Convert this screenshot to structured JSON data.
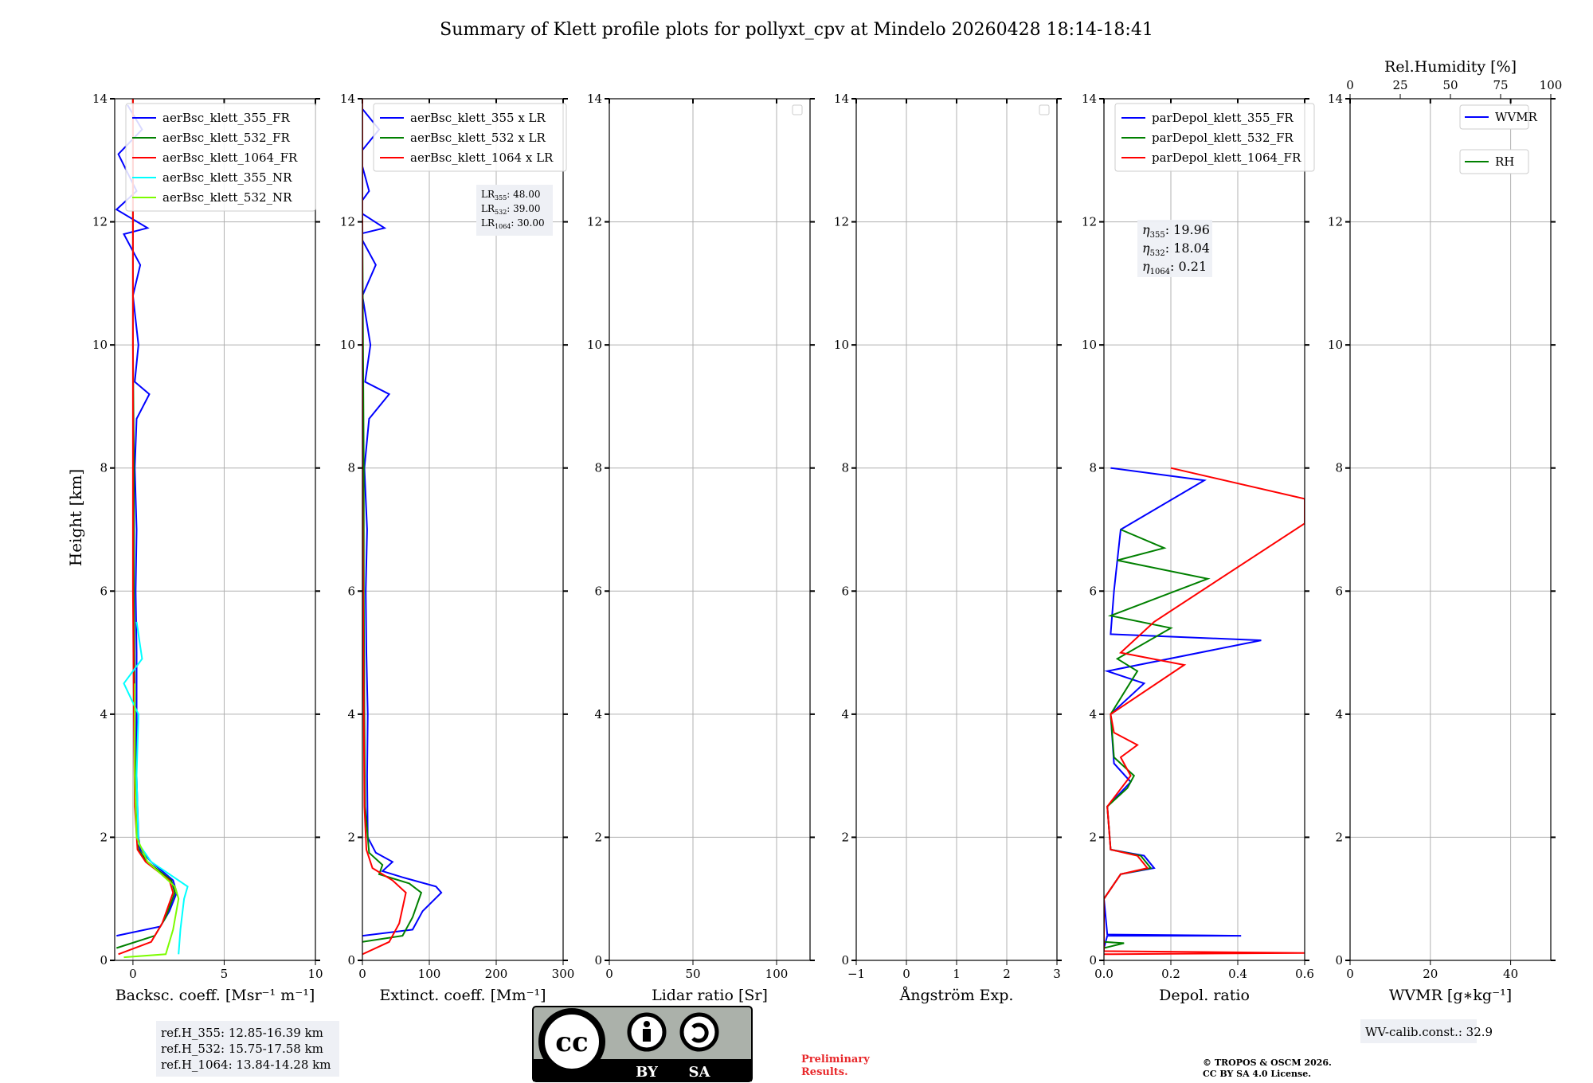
{
  "title": "Summary of Klett profile plots for pollyxt_cpv at Mindelo 20260428 18:14-18:41",
  "ylabel": "Height [km]",
  "colors": {
    "c355": "#0000ff",
    "c532": "#008000",
    "c1064": "#ff0000",
    "c355nr": "#00ffff",
    "c532nr": "#7cfc00"
  },
  "chart_data": [
    {
      "type": "line",
      "panel": "backscatter",
      "xlabel": "Backsc. coeff. [Msr⁻¹ m⁻¹]",
      "xlim": [
        -1,
        10
      ],
      "ylim": [
        0,
        14
      ],
      "xticks": [
        "0",
        "5",
        "10"
      ],
      "yticks": [
        "0",
        "2",
        "4",
        "6",
        "8",
        "10",
        "12",
        "14"
      ],
      "legend": [
        "aerBsc_klett_355_FR",
        "aerBsc_klett_532_FR",
        "aerBsc_klett_1064_FR",
        "aerBsc_klett_355_NR",
        "aerBsc_klett_532_NR"
      ],
      "series": [
        {
          "name": "aerBsc_klett_355_FR",
          "color": "c355",
          "points": [
            [
              -0.9,
              0.4
            ],
            [
              1.5,
              0.55
            ],
            [
              2.0,
              0.8
            ],
            [
              2.4,
              1.1
            ],
            [
              2.2,
              1.3
            ],
            [
              1.0,
              1.6
            ],
            [
              0.4,
              1.8
            ],
            [
              0.3,
              2.0
            ],
            [
              0.2,
              3.0
            ],
            [
              0.2,
              4.0
            ],
            [
              0.2,
              5.0
            ],
            [
              0.15,
              6.0
            ],
            [
              0.2,
              7.0
            ],
            [
              0.1,
              8.0
            ],
            [
              0.2,
              8.8
            ],
            [
              0.9,
              9.2
            ],
            [
              0.1,
              9.4
            ],
            [
              0.3,
              10.0
            ],
            [
              0.0,
              10.8
            ],
            [
              0.4,
              11.3
            ],
            [
              -0.5,
              11.8
            ],
            [
              0.8,
              11.9
            ],
            [
              -0.9,
              12.2
            ],
            [
              0.2,
              12.5
            ],
            [
              -0.8,
              13.1
            ],
            [
              0.5,
              13.5
            ],
            [
              -0.3,
              13.9
            ]
          ]
        },
        {
          "name": "aerBsc_klett_532_FR",
          "color": "c532",
          "points": [
            [
              -0.9,
              0.2
            ],
            [
              1.2,
              0.4
            ],
            [
              1.8,
              0.7
            ],
            [
              2.3,
              1.1
            ],
            [
              2.1,
              1.3
            ],
            [
              0.8,
              1.6
            ],
            [
              0.3,
              1.8
            ],
            [
              0.15,
              2.5
            ],
            [
              0.1,
              4.0
            ],
            [
              0.05,
              6.0
            ],
            [
              0.05,
              8.0
            ],
            [
              0.0,
              10.0
            ],
            [
              0.0,
              12.0
            ],
            [
              0.0,
              14.0
            ]
          ]
        },
        {
          "name": "aerBsc_klett_1064_FR",
          "color": "c1064",
          "points": [
            [
              -0.8,
              0.1
            ],
            [
              1.0,
              0.3
            ],
            [
              1.6,
              0.6
            ],
            [
              2.2,
              1.1
            ],
            [
              2.0,
              1.3
            ],
            [
              0.7,
              1.6
            ],
            [
              0.25,
              1.8
            ],
            [
              0.1,
              2.5
            ],
            [
              0.05,
              4.0
            ],
            [
              0.0,
              6.0
            ],
            [
              0.0,
              8.0
            ],
            [
              0.0,
              10.0
            ],
            [
              0.0,
              12.0
            ],
            [
              0.0,
              14.0
            ]
          ]
        },
        {
          "name": "aerBsc_klett_355_NR",
          "color": "c355nr",
          "points": [
            [
              2.5,
              0.1
            ],
            [
              2.6,
              0.5
            ],
            [
              2.8,
              1.0
            ],
            [
              3.0,
              1.2
            ],
            [
              1.0,
              1.6
            ],
            [
              0.3,
              1.9
            ],
            [
              0.2,
              3.0
            ],
            [
              0.3,
              4.0
            ],
            [
              -0.5,
              4.5
            ],
            [
              0.5,
              4.9
            ],
            [
              0.2,
              5.5
            ]
          ]
        },
        {
          "name": "aerBsc_klett_532_NR",
          "color": "c532nr",
          "points": [
            [
              -0.5,
              0.05
            ],
            [
              1.8,
              0.1
            ],
            [
              2.2,
              0.5
            ],
            [
              2.5,
              1.0
            ],
            [
              2.3,
              1.2
            ],
            [
              0.8,
              1.6
            ],
            [
              0.2,
              2.0
            ],
            [
              0.1,
              3.0
            ],
            [
              0.1,
              4.5
            ]
          ]
        }
      ],
      "annotation": [
        "ref.H_355: 12.85-16.39 km",
        "ref.H_532: 15.75-17.58 km",
        "ref.H_1064: 13.84-14.28 km"
      ]
    },
    {
      "type": "line",
      "panel": "extinction",
      "xlabel": "Extinct. coeff. [Mm⁻¹]",
      "xlim": [
        0,
        300
      ],
      "ylim": [
        0,
        14
      ],
      "xticks": [
        "0",
        "100",
        "200",
        "300"
      ],
      "yticks": [
        "0",
        "2",
        "4",
        "6",
        "8",
        "10",
        "12",
        "14"
      ],
      "legend": [
        "aerBsc_klett_355 x LR",
        "aerBsc_klett_532 x LR",
        "aerBsc_klett_1064 x LR"
      ],
      "series": [
        {
          "name": "aerBsc_klett_355 x LR",
          "color": "c355",
          "points": [
            [
              0,
              0.4
            ],
            [
              75,
              0.5
            ],
            [
              90,
              0.8
            ],
            [
              118,
              1.1
            ],
            [
              110,
              1.2
            ],
            [
              60,
              1.35
            ],
            [
              30,
              1.45
            ],
            [
              45,
              1.6
            ],
            [
              20,
              1.75
            ],
            [
              8,
              2.0
            ],
            [
              7,
              3.0
            ],
            [
              8,
              4.0
            ],
            [
              6,
              5.0
            ],
            [
              5,
              6.0
            ],
            [
              7,
              7.0
            ],
            [
              3,
              8.0
            ],
            [
              10,
              8.8
            ],
            [
              40,
              9.2
            ],
            [
              4,
              9.4
            ],
            [
              12,
              10.0
            ],
            [
              0,
              10.8
            ],
            [
              20,
              11.3
            ],
            [
              -5,
              11.8
            ],
            [
              33,
              11.9
            ],
            [
              -10,
              12.2
            ],
            [
              10,
              12.5
            ],
            [
              -5,
              13.1
            ],
            [
              25,
              13.5
            ],
            [
              -5,
              13.9
            ]
          ]
        },
        {
          "name": "aerBsc_klett_532 x LR",
          "color": "c532",
          "points": [
            [
              0,
              0.3
            ],
            [
              60,
              0.4
            ],
            [
              75,
              0.7
            ],
            [
              88,
              1.1
            ],
            [
              70,
              1.25
            ],
            [
              25,
              1.4
            ],
            [
              30,
              1.55
            ],
            [
              10,
              1.75
            ],
            [
              4,
              2.5
            ],
            [
              3,
              4.0
            ],
            [
              2,
              6.0
            ],
            [
              2,
              8.0
            ],
            [
              1,
              10.0
            ],
            [
              0,
              12.0
            ],
            [
              0,
              14.0
            ]
          ]
        },
        {
          "name": "aerBsc_klett_1064 x LR",
          "color": "c1064",
          "points": [
            [
              0,
              0.1
            ],
            [
              40,
              0.3
            ],
            [
              55,
              0.6
            ],
            [
              65,
              1.1
            ],
            [
              45,
              1.3
            ],
            [
              15,
              1.5
            ],
            [
              6,
              1.8
            ],
            [
              3,
              2.5
            ],
            [
              2,
              4.0
            ],
            [
              1,
              6.0
            ],
            [
              0,
              8.0
            ],
            [
              0,
              10.0
            ],
            [
              0,
              12.0
            ],
            [
              0,
              14.0
            ]
          ]
        }
      ],
      "annotation": [
        "48.00",
        "39.00",
        "30.00"
      ]
    },
    {
      "type": "line",
      "panel": "lidar-ratio",
      "xlabel": "Lidar ratio [Sr]",
      "xlim": [
        0,
        120
      ],
      "ylim": [
        0,
        14
      ],
      "xticks": [
        "0",
        "50",
        "100"
      ],
      "yticks": [
        "0",
        "2",
        "4",
        "6",
        "8",
        "10",
        "12",
        "14"
      ],
      "series": []
    },
    {
      "type": "line",
      "panel": "angstrom",
      "xlabel": "Ångström Exp.",
      "xlim": [
        -1,
        3
      ],
      "ylim": [
        0,
        14
      ],
      "xticks": [
        "−1",
        "0",
        "1",
        "2",
        "3"
      ],
      "yticks": [
        "0",
        "2",
        "4",
        "6",
        "8",
        "10",
        "12",
        "14"
      ],
      "series": []
    },
    {
      "type": "line",
      "panel": "depol",
      "xlabel": "Depol. ratio",
      "xlim": [
        0,
        0.6
      ],
      "ylim": [
        0,
        14
      ],
      "xticks": [
        "0.0",
        "0.2",
        "0.4",
        "0.6"
      ],
      "yticks": [
        "0",
        "2",
        "4",
        "6",
        "8",
        "10",
        "12",
        "14"
      ],
      "legend": [
        "parDepol_klett_355_FR",
        "parDepol_klett_532_FR",
        "parDepol_klett_1064_FR"
      ],
      "series": [
        {
          "name": "parDepol_klett_355_FR",
          "color": "c355",
          "points": [
            [
              0.0,
              0.2
            ],
            [
              0.01,
              0.4
            ],
            [
              0.41,
              0.4
            ],
            [
              0.01,
              0.42
            ],
            [
              0.0,
              1.0
            ],
            [
              0.05,
              1.4
            ],
            [
              0.15,
              1.5
            ],
            [
              0.12,
              1.7
            ],
            [
              0.02,
              1.8
            ],
            [
              0.01,
              2.5
            ],
            [
              0.08,
              2.9
            ],
            [
              0.03,
              3.2
            ],
            [
              0.02,
              4.0
            ],
            [
              0.12,
              4.5
            ],
            [
              0.01,
              4.7
            ],
            [
              0.47,
              5.2
            ],
            [
              0.02,
              5.3
            ],
            [
              0.03,
              6.0
            ],
            [
              0.05,
              7.0
            ],
            [
              0.3,
              7.8
            ],
            [
              0.02,
              8.0
            ]
          ]
        },
        {
          "name": "parDepol_klett_532_FR",
          "color": "c532",
          "points": [
            [
              0.0,
              0.2
            ],
            [
              0.06,
              0.28
            ],
            [
              0.0,
              0.3
            ],
            [
              0.0,
              1.0
            ],
            [
              0.05,
              1.4
            ],
            [
              0.14,
              1.5
            ],
            [
              0.11,
              1.7
            ],
            [
              0.02,
              1.8
            ],
            [
              0.01,
              2.5
            ],
            [
              0.07,
              2.8
            ],
            [
              0.09,
              3.0
            ],
            [
              0.03,
              3.3
            ],
            [
              0.02,
              4.0
            ],
            [
              0.1,
              4.7
            ],
            [
              0.04,
              4.9
            ],
            [
              0.2,
              5.4
            ],
            [
              0.02,
              5.6
            ],
            [
              0.31,
              6.2
            ],
            [
              0.04,
              6.5
            ],
            [
              0.18,
              6.7
            ],
            [
              0.05,
              7.0
            ]
          ]
        },
        {
          "name": "parDepol_klett_1064_FR",
          "color": "c1064",
          "points": [
            [
              0.0,
              0.1
            ],
            [
              0.6,
              0.12
            ],
            [
              0.0,
              0.15
            ],
            [
              0.0,
              1.0
            ],
            [
              0.05,
              1.4
            ],
            [
              0.13,
              1.5
            ],
            [
              0.1,
              1.7
            ],
            [
              0.02,
              1.8
            ],
            [
              0.01,
              2.5
            ],
            [
              0.08,
              3.0
            ],
            [
              0.05,
              3.3
            ],
            [
              0.1,
              3.5
            ],
            [
              0.03,
              3.7
            ],
            [
              0.02,
              4.0
            ],
            [
              0.24,
              4.8
            ],
            [
              0.05,
              5.0
            ],
            [
              0.15,
              5.5
            ],
            [
              0.6,
              7.1
            ],
            [
              0.6,
              7.5
            ],
            [
              0.2,
              8.0
            ]
          ]
        }
      ],
      "annotation": [
        "19.96",
        "18.04",
        "0.21"
      ]
    },
    {
      "type": "line",
      "panel": "wvmr",
      "xlabel": "WVMR [g∗kg⁻¹]",
      "xlim": [
        0,
        50
      ],
      "ylim": [
        0,
        14
      ],
      "xticks": [
        "0",
        "20",
        "40"
      ],
      "yticks": [
        "0",
        "2",
        "4",
        "6",
        "8",
        "10",
        "12",
        "14"
      ],
      "top_xlabel": "Rel.Humidity [%]",
      "top_xticks": [
        "0",
        "25",
        "50",
        "75",
        "100"
      ],
      "legend": [
        "WVMR",
        "RH"
      ],
      "series": [],
      "annotation": [
        "WV-calib.const.: 32.9"
      ]
    }
  ],
  "license": {
    "cc": "cc",
    "by": "BY",
    "sa": "SA"
  },
  "footer": {
    "preliminary": "Preliminary",
    "results": "Results.",
    "copyright1": "© TROPOS & OSCM 2026.",
    "copyright2": "CC BY SA 4.0 License."
  },
  "lr_label": "LR",
  "eta_label": "η",
  "sub": {
    "w355": "355",
    "w532": "532",
    "w1064": "1064"
  }
}
